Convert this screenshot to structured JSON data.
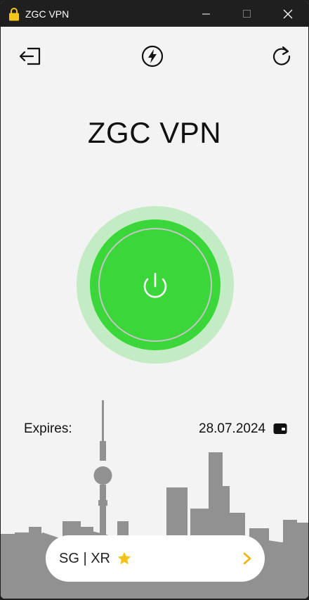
{
  "window": {
    "title": "ZGC VPN"
  },
  "header": {
    "app_name": "ZGC VPN"
  },
  "toolbar": {
    "logout_icon": "logout-icon",
    "speed_icon": "lightning-bolt-icon",
    "refresh_icon": "refresh-icon"
  },
  "connection": {
    "status": "connected",
    "accent_color": "#3ad63a",
    "halo_color": "#c4ecc4",
    "power_icon": "power-icon"
  },
  "subscription": {
    "expires_label": "Expires:",
    "expires_date": "28.07.2024",
    "wallet_icon": "wallet-icon"
  },
  "server": {
    "label": "SG | XR",
    "favorite_icon": "star-icon",
    "favorite_color": "#f3c414",
    "chevron_icon": "chevron-right-icon",
    "chevron_color": "#f0b400"
  }
}
